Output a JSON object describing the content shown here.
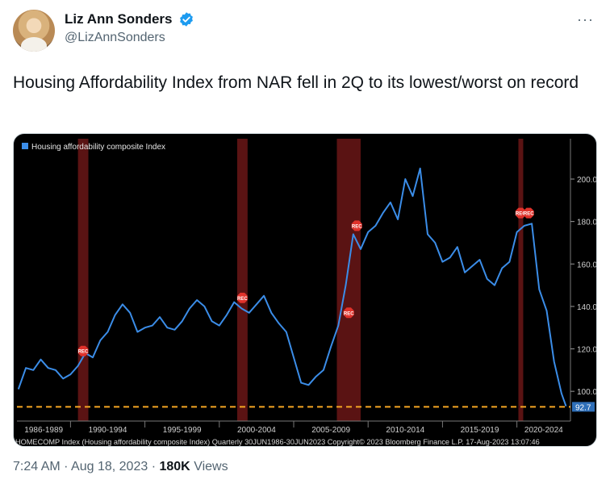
{
  "author": {
    "display_name": "Liz Ann Sonders",
    "handle": "@LizAnnSonders",
    "verified_color": "#1d9bf0"
  },
  "more_label": "···",
  "tweet_text": "Housing Affordability Index from NAR fell in 2Q to its lowest/worst on record",
  "meta": {
    "time": "7:24 AM",
    "sep1": "·",
    "date": "Aug 18, 2023",
    "sep2": "·",
    "views_count": "180K",
    "views_label": "Views"
  },
  "chart_data": {
    "type": "line",
    "legend": "Housing affordability composite Index",
    "legend_color": "#3b8de8",
    "line_color": "#3b8de8",
    "x_tick_labels": [
      "1986-1989",
      "1990-1994",
      "1995-1999",
      "2000-2004",
      "2005-2009",
      "2010-2014",
      "2015-2019",
      "2020-2024"
    ],
    "y_ticks": [
      100.0,
      120.0,
      140.0,
      160.0,
      180.0,
      200.0
    ],
    "y_tick_labels": [
      "100.0",
      "120.0",
      "140.0",
      "160.0",
      "180.0",
      "200.0"
    ],
    "ylim": [
      86,
      219
    ],
    "last_value": 92.7,
    "last_value_label": "92.7",
    "reference_line": 92.7,
    "reference_line_color": "#f5a623",
    "recession_label": "REC",
    "recession_color": "#6a1616",
    "recession_marker_color": "#e0322b",
    "recessions": [
      {
        "start": 1990.5,
        "end": 1991.2,
        "marker_y": 119
      },
      {
        "start": 2001.2,
        "end": 2001.9,
        "marker_y": 144
      },
      {
        "start": 2007.9,
        "end": 2009.5,
        "marker_y": 137,
        "marker2_y": 178
      },
      {
        "start": 2020.1,
        "end": 2020.4,
        "marker_y": 184,
        "marker2_y": 184
      }
    ],
    "x_start": 1986.4,
    "x_end": 2023.6,
    "series": [
      {
        "x": [
          1986.5,
          1987.0,
          1987.5,
          1988.0,
          1988.5,
          1989.0,
          1989.5,
          1990.0,
          1990.5,
          1991.0,
          1991.5,
          1992.0,
          1992.5,
          1993.0,
          1993.5,
          1994.0,
          1994.5,
          1995.0,
          1995.5,
          1996.0,
          1996.5,
          1997.0,
          1997.5,
          1998.0,
          1998.5,
          1999.0,
          1999.5,
          2000.0,
          2000.5,
          2001.0,
          2001.5,
          2002.0,
          2002.5,
          2003.0,
          2003.5,
          2004.0,
          2004.5,
          2005.0,
          2005.5,
          2006.0,
          2006.5,
          2007.0,
          2007.5,
          2008.0,
          2008.5,
          2009.0,
          2009.5,
          2010.0,
          2010.5,
          2011.0,
          2011.5,
          2012.0,
          2012.5,
          2013.0,
          2013.5,
          2014.0,
          2014.5,
          2015.0,
          2015.5,
          2016.0,
          2016.5,
          2017.0,
          2017.5,
          2018.0,
          2018.5,
          2019.0,
          2019.5,
          2020.0,
          2020.5,
          2021.0,
          2021.5,
          2022.0,
          2022.5,
          2023.0,
          2023.3
        ],
        "y": [
          101,
          111,
          110,
          115,
          111,
          110,
          106,
          108,
          112,
          118,
          116,
          124,
          128,
          136,
          141,
          137,
          128,
          130,
          131,
          135,
          130,
          129,
          133,
          139,
          143,
          140,
          133,
          131,
          136,
          142,
          139,
          137,
          141,
          145,
          137,
          132,
          128,
          116,
          104,
          103,
          107,
          110,
          121,
          131,
          150,
          174,
          167,
          175,
          178,
          184,
          189,
          181,
          200,
          192,
          205,
          174,
          170,
          161,
          163,
          168,
          156,
          159,
          162,
          153,
          150,
          158,
          161,
          175,
          178,
          179,
          148,
          138,
          114,
          99,
          93
        ]
      }
    ],
    "source_text": "HOMECOMP Index (Housing affordability composite Index)  Quarterly 30JUN1986-30JUN2023 Copyright© 2023 Bloomberg Finance L.P.  17-Aug-2023 13:07:46"
  }
}
